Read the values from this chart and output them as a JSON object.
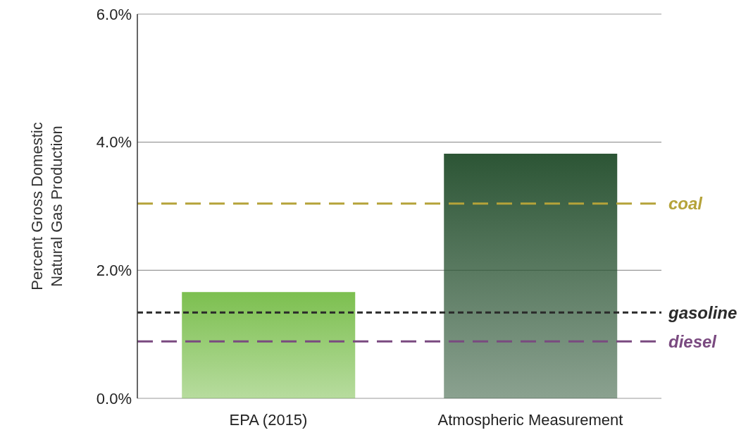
{
  "chart_data": {
    "type": "bar",
    "ylabel": "Percent Gross Domestic Natural Gas Production",
    "categories": [
      "EPA (2015)",
      "Atmospheric Measurement"
    ],
    "values": [
      1.66,
      3.82
    ],
    "colors": [
      "#7cbf4f",
      "#2c5535"
    ],
    "ylim": [
      0,
      6
    ],
    "yticks": [
      {
        "value": 0,
        "label": "0.0%"
      },
      {
        "value": 2,
        "label": "2.0%"
      },
      {
        "value": 4,
        "label": "4.0%"
      },
      {
        "value": 6,
        "label": "6.0%"
      }
    ],
    "grid": "y",
    "ref_lines": [
      {
        "axis": "y",
        "value": 3.04,
        "label": "coal",
        "color": "#b5a33a",
        "line_style": "dashed"
      },
      {
        "axis": "y",
        "value": 1.34,
        "label": "gasoline",
        "color": "#2a2a2a",
        "line_style": "dotted"
      },
      {
        "axis": "y",
        "value": 0.89,
        "label": "diesel",
        "color": "#7a4a80",
        "line_style": "dashed"
      }
    ]
  }
}
